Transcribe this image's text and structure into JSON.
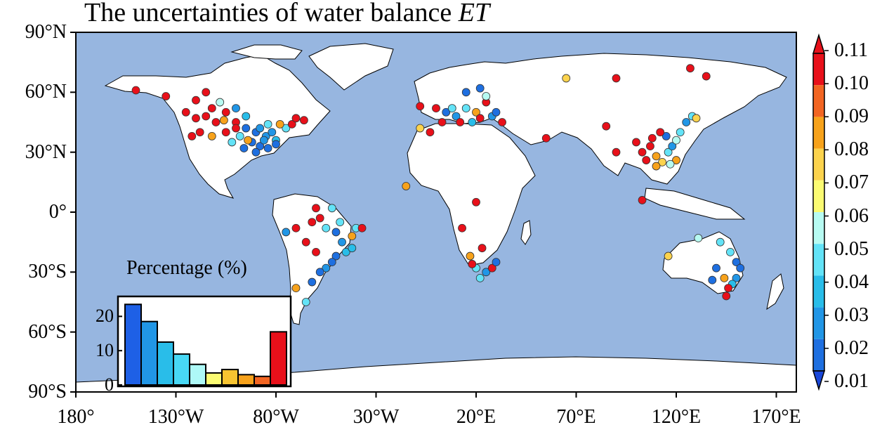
{
  "map": {
    "title": "The uncertainties of water balance",
    "title_italic": "ET",
    "ocean_color": "#97b6e0",
    "land_color": "#ffffff",
    "lat_labels": [
      {
        "label": "90°N",
        "lat": 90
      },
      {
        "label": "60°N",
        "lat": 60
      },
      {
        "label": "30°N",
        "lat": 30
      },
      {
        "label": "0°",
        "lat": 0
      },
      {
        "label": "30°S",
        "lat": -30
      },
      {
        "label": "60°S",
        "lat": -60
      },
      {
        "label": "90°S",
        "lat": -90
      }
    ],
    "lon_labels": [
      {
        "label": "180°",
        "lon": -180
      },
      {
        "label": "130°W",
        "lon": -130
      },
      {
        "label": "80°W",
        "lon": -80
      },
      {
        "label": "30°W",
        "lon": -30
      },
      {
        "label": "20°E",
        "lon": 20
      },
      {
        "label": "70°E",
        "lon": 70
      },
      {
        "label": "120°E",
        "lon": 120
      },
      {
        "label": "170°E",
        "lon": 170
      }
    ]
  },
  "colorbar": {
    "labels": [
      "0.11",
      "0.10",
      "0.09",
      "0.08",
      "0.07",
      "0.06",
      "0.05",
      "0.04",
      "0.03",
      "0.02",
      "0.01"
    ],
    "colors": [
      "#e8101a",
      "#f26522",
      "#f7a21b",
      "#fcd34d",
      "#fbfb72",
      "#b7fbf2",
      "#63e3f7",
      "#29bde9",
      "#2196e6",
      "#1e6fe0"
    ],
    "extend_max_color": "#e8101a",
    "extend_min_color": "#1947d9"
  },
  "chart_data": {
    "type": "bar",
    "title": "Percentage (%)",
    "yticks": [
      0,
      10,
      20
    ],
    "ylim": [
      0,
      25
    ],
    "values": [
      23.5,
      18.5,
      12.5,
      9,
      6,
      3.5,
      4.5,
      3,
      2.5,
      15.5
    ],
    "colors": [
      "#1e60e6",
      "#2196e6",
      "#29bde9",
      "#48d8f5",
      "#aef9f7",
      "#fbfb72",
      "#f7c431",
      "#f7a21b",
      "#f26522",
      "#e8101a"
    ]
  },
  "stations": [
    {
      "lon": -105,
      "lat": 50,
      "v": 0.105
    },
    {
      "lon": -100,
      "lat": 45,
      "v": 0.11
    },
    {
      "lon": -95,
      "lat": 42,
      "v": 0.02
    },
    {
      "lon": -90,
      "lat": 40,
      "v": 0.015
    },
    {
      "lon": -85,
      "lat": 38,
      "v": 0.03
    },
    {
      "lon": -80,
      "lat": 36,
      "v": 0.04
    },
    {
      "lon": -110,
      "lat": 45,
      "v": 0.11
    },
    {
      "lon": -115,
      "lat": 48,
      "v": 0.1
    },
    {
      "lon": -120,
      "lat": 47,
      "v": 0.11
    },
    {
      "lon": -118,
      "lat": 40,
      "v": 0.11
    },
    {
      "lon": -112,
      "lat": 38,
      "v": 0.09
    },
    {
      "lon": -105,
      "lat": 40,
      "v": 0.11
    },
    {
      "lon": -98,
      "lat": 38,
      "v": 0.05
    },
    {
      "lon": -92,
      "lat": 35,
      "v": 0.02
    },
    {
      "lon": -88,
      "lat": 33,
      "v": 0.015
    },
    {
      "lon": -84,
      "lat": 32,
      "v": 0.02
    },
    {
      "lon": -82,
      "lat": 40,
      "v": 0.03
    },
    {
      "lon": -75,
      "lat": 42,
      "v": 0.05
    },
    {
      "lon": -72,
      "lat": 44,
      "v": 0.11
    },
    {
      "lon": -78,
      "lat": 44,
      "v": 0.09
    },
    {
      "lon": -95,
      "lat": 48,
      "v": 0.04
    },
    {
      "lon": -100,
      "lat": 52,
      "v": 0.03
    },
    {
      "lon": -108,
      "lat": 55,
      "v": 0.06
    },
    {
      "lon": -112,
      "lat": 52,
      "v": 0.11
    },
    {
      "lon": -120,
      "lat": 56,
      "v": 0.1
    },
    {
      "lon": -125,
      "lat": 50,
      "v": 0.11
    },
    {
      "lon": -122,
      "lat": 38,
      "v": 0.11
    },
    {
      "lon": -96,
      "lat": 32,
      "v": 0.02
    },
    {
      "lon": -90,
      "lat": 30,
      "v": 0.015
    },
    {
      "lon": -86,
      "lat": 36,
      "v": 0.03
    },
    {
      "lon": -150,
      "lat": 61,
      "v": 0.11
    },
    {
      "lon": -135,
      "lat": 58,
      "v": 0.11
    },
    {
      "lon": -115,
      "lat": 60,
      "v": 0.11
    },
    {
      "lon": -70,
      "lat": 47,
      "v": 0.11
    },
    {
      "lon": -66,
      "lat": 46,
      "v": 0.11
    },
    {
      "lon": -102,
      "lat": 35,
      "v": 0.05
    },
    {
      "lon": -80,
      "lat": 34,
      "v": 0.02
    },
    {
      "lon": -94,
      "lat": 36,
      "v": 0.09
    },
    {
      "lon": -106,
      "lat": 46,
      "v": 0.09
    },
    {
      "lon": -100,
      "lat": 42,
      "v": 0.11
    },
    {
      "lon": -84,
      "lat": 44,
      "v": 0.05
    },
    {
      "lon": -88,
      "lat": 42,
      "v": 0.03
    },
    {
      "lon": -62,
      "lat": -5,
      "v": 0.11
    },
    {
      "lon": -58,
      "lat": -3,
      "v": 0.11
    },
    {
      "lon": -55,
      "lat": -8,
      "v": 0.05
    },
    {
      "lon": -50,
      "lat": -10,
      "v": 0.02
    },
    {
      "lon": -47,
      "lat": -15,
      "v": 0.03
    },
    {
      "lon": -45,
      "lat": -20,
      "v": 0.04
    },
    {
      "lon": -50,
      "lat": -22,
      "v": 0.015
    },
    {
      "lon": -52,
      "lat": -25,
      "v": 0.02
    },
    {
      "lon": -55,
      "lat": -28,
      "v": 0.03
    },
    {
      "lon": -42,
      "lat": -12,
      "v": 0.09
    },
    {
      "lon": -40,
      "lat": -8,
      "v": 0.05
    },
    {
      "lon": -37,
      "lat": -8,
      "v": 0.1
    },
    {
      "lon": -48,
      "lat": -5,
      "v": 0.05
    },
    {
      "lon": -65,
      "lat": -15,
      "v": 0.11
    },
    {
      "lon": -70,
      "lat": -8,
      "v": 0.11
    },
    {
      "lon": -75,
      "lat": -10,
      "v": 0.03
    },
    {
      "lon": -60,
      "lat": -20,
      "v": 0.1
    },
    {
      "lon": -58,
      "lat": -30,
      "v": 0.015
    },
    {
      "lon": -62,
      "lat": -35,
      "v": 0.02
    },
    {
      "lon": -70,
      "lat": -38,
      "v": 0.09
    },
    {
      "lon": -65,
      "lat": -45,
      "v": 0.05
    },
    {
      "lon": -42,
      "lat": -18,
      "v": 0.04
    },
    {
      "lon": -52,
      "lat": 2,
      "v": 0.05
    },
    {
      "lon": -60,
      "lat": 2,
      "v": 0.11
    },
    {
      "lon": -8,
      "lat": 53,
      "v": 0.11
    },
    {
      "lon": 0,
      "lat": 52,
      "v": 0.11
    },
    {
      "lon": 5,
      "lat": 50,
      "v": 0.02
    },
    {
      "lon": 10,
      "lat": 48,
      "v": 0.03
    },
    {
      "lon": 15,
      "lat": 52,
      "v": 0.05
    },
    {
      "lon": 20,
      "lat": 50,
      "v": 0.09
    },
    {
      "lon": 25,
      "lat": 55,
      "v": 0.11
    },
    {
      "lon": 12,
      "lat": 45,
      "v": 0.11
    },
    {
      "lon": 18,
      "lat": 45,
      "v": 0.04
    },
    {
      "lon": 22,
      "lat": 47,
      "v": 0.1
    },
    {
      "lon": 28,
      "lat": 48,
      "v": 0.03
    },
    {
      "lon": 30,
      "lat": 50,
      "v": 0.02
    },
    {
      "lon": 15,
      "lat": 60,
      "v": 0.02
    },
    {
      "lon": 22,
      "lat": 62,
      "v": 0.015
    },
    {
      "lon": 25,
      "lat": 58,
      "v": 0.06
    },
    {
      "lon": -3,
      "lat": 40,
      "v": 0.11
    },
    {
      "lon": -8,
      "lat": 42,
      "v": 0.07
    },
    {
      "lon": 3,
      "lat": 45,
      "v": 0.11
    },
    {
      "lon": 8,
      "lat": 52,
      "v": 0.05
    },
    {
      "lon": 33,
      "lat": 45,
      "v": 0.11
    },
    {
      "lon": 55,
      "lat": 37,
      "v": 0.11
    },
    {
      "lon": 65,
      "lat": 67,
      "v": 0.07
    },
    {
      "lon": 85,
      "lat": 43,
      "v": 0.11
    },
    {
      "lon": 90,
      "lat": 67,
      "v": 0.11
    },
    {
      "lon": 127,
      "lat": 72,
      "v": 0.11
    },
    {
      "lon": 135,
      "lat": 68,
      "v": 0.11
    },
    {
      "lon": 90,
      "lat": 30,
      "v": 0.11
    },
    {
      "lon": 100,
      "lat": 35,
      "v": 0.11
    },
    {
      "lon": 103,
      "lat": 30,
      "v": 0.11
    },
    {
      "lon": 107,
      "lat": 33,
      "v": 0.1
    },
    {
      "lon": 110,
      "lat": 28,
      "v": 0.09
    },
    {
      "lon": 113,
      "lat": 25,
      "v": 0.08
    },
    {
      "lon": 116,
      "lat": 30,
      "v": 0.05
    },
    {
      "lon": 118,
      "lat": 33,
      "v": 0.03
    },
    {
      "lon": 115,
      "lat": 38,
      "v": 0.02
    },
    {
      "lon": 120,
      "lat": 36,
      "v": 0.06
    },
    {
      "lon": 122,
      "lat": 40,
      "v": 0.05
    },
    {
      "lon": 125,
      "lat": 45,
      "v": 0.03
    },
    {
      "lon": 128,
      "lat": 48,
      "v": 0.05
    },
    {
      "lon": 130,
      "lat": 47,
      "v": 0.07
    },
    {
      "lon": 112,
      "lat": 40,
      "v": 0.11
    },
    {
      "lon": 108,
      "lat": 37,
      "v": 0.11
    },
    {
      "lon": 105,
      "lat": 26,
      "v": 0.1
    },
    {
      "lon": 110,
      "lat": 23,
      "v": 0.09
    },
    {
      "lon": 120,
      "lat": 26,
      "v": 0.09
    },
    {
      "lon": 117,
      "lat": 24,
      "v": 0.06
    },
    {
      "lon": 103,
      "lat": 6,
      "v": 0.11
    },
    {
      "lon": -15,
      "lat": 13,
      "v": 0.09
    },
    {
      "lon": 20,
      "lat": 5,
      "v": 0.11
    },
    {
      "lon": 13,
      "lat": -8,
      "v": 0.11
    },
    {
      "lon": 23,
      "lat": -18,
      "v": 0.11
    },
    {
      "lon": 17,
      "lat": -22,
      "v": 0.09
    },
    {
      "lon": 20,
      "lat": -28,
      "v": 0.05
    },
    {
      "lon": 25,
      "lat": -30,
      "v": 0.03
    },
    {
      "lon": 28,
      "lat": -28,
      "v": 0.11
    },
    {
      "lon": 22,
      "lat": -33,
      "v": 0.05
    },
    {
      "lon": 30,
      "lat": -25,
      "v": 0.02
    },
    {
      "lon": 18,
      "lat": -26,
      "v": 0.11
    },
    {
      "lon": 147,
      "lat": -20,
      "v": 0.05
    },
    {
      "lon": 150,
      "lat": -25,
      "v": 0.015
    },
    {
      "lon": 152,
      "lat": -28,
      "v": 0.02
    },
    {
      "lon": 150,
      "lat": -33,
      "v": 0.03
    },
    {
      "lon": 148,
      "lat": -36,
      "v": 0.04
    },
    {
      "lon": 146,
      "lat": -38,
      "v": 0.11
    },
    {
      "lon": 145,
      "lat": -42,
      "v": 0.11
    },
    {
      "lon": 140,
      "lat": -28,
      "v": 0.015
    },
    {
      "lon": 142,
      "lat": -15,
      "v": 0.05
    },
    {
      "lon": 131,
      "lat": -13,
      "v": 0.06
    },
    {
      "lon": 116,
      "lat": -22,
      "v": 0.07
    },
    {
      "lon": 138,
      "lat": -34,
      "v": 0.02
    },
    {
      "lon": 144,
      "lat": -33,
      "v": 0.09
    }
  ]
}
